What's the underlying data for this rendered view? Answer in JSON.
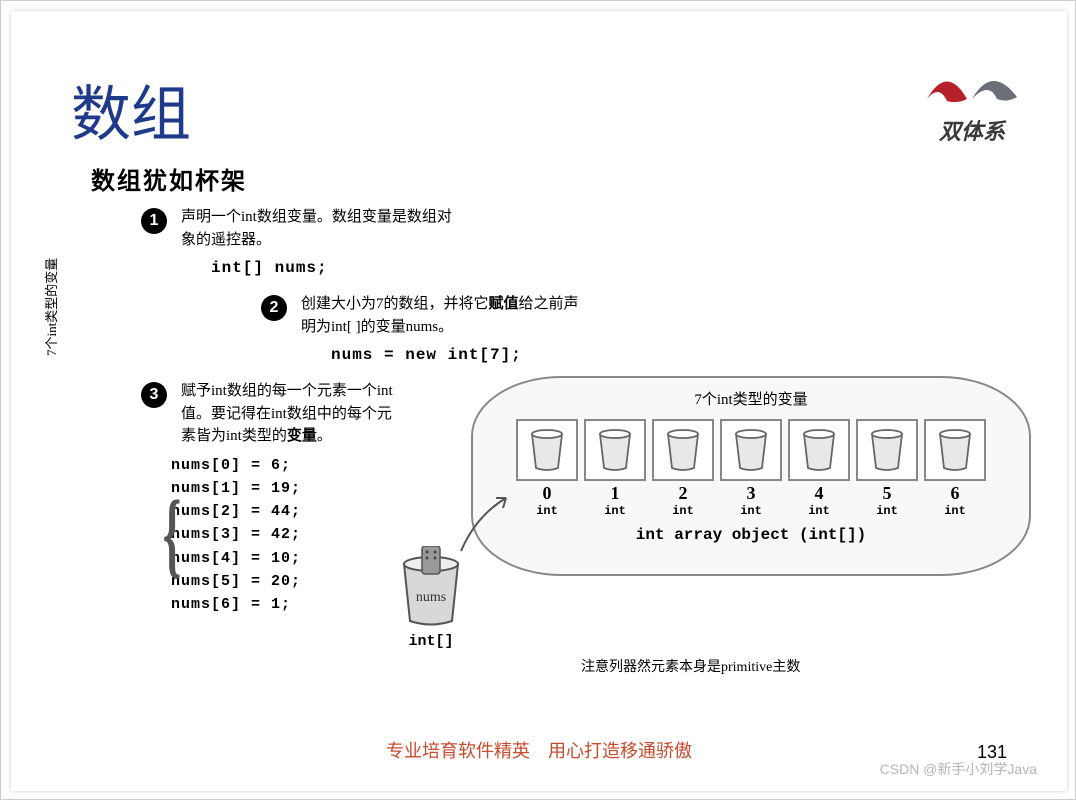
{
  "title": "数组",
  "logo_text": "双体系",
  "subtitle": "数组犹如杯架",
  "steps": [
    {
      "num": "1",
      "text_a": "声明一个int数组变量。数组变量是数组对",
      "text_b": "象的遥控器。",
      "code": "int[] nums;"
    },
    {
      "num": "2",
      "text_a": "创建大小为7的数组，并将它",
      "bold": "赋值",
      "text_b": "给之前声",
      "text_c": "明为int[ ]的变量nums。",
      "code": "nums = new int[7];"
    },
    {
      "num": "3",
      "text_a": "赋予int数组的每一个元素一个int",
      "text_b": "值。要记得在int数组中的每个元",
      "text_c": "素皆为int类型的",
      "bold": "变量",
      "text_d": "。"
    }
  ],
  "assignments": [
    "nums[0] = 6;",
    "nums[1] = 19;",
    "nums[2] = 44;",
    "nums[3] = 42;",
    "nums[4] = 10;",
    "nums[5] = 20;",
    "nums[6] = 1;"
  ],
  "side_label": "7个int类型的变量",
  "diagram": {
    "caption": "7个int类型的变量",
    "indices": [
      "0",
      "1",
      "2",
      "3",
      "4",
      "5",
      "6"
    ],
    "type_label": "int",
    "array_obj": "int array object (int[])",
    "remote_var": "nums",
    "remote_type": "int[]"
  },
  "note": "注意列器然元素本身是primitive主数",
  "footer": "专业培育软件精英　用心打造移通骄傲",
  "page_num": "131",
  "watermark": "CSDN @新手小刘学Java",
  "colors": {
    "title": "#1f3a8a",
    "footer": "#c94a2e",
    "logo_red": "#b5202a",
    "logo_gray": "#6a6f78"
  }
}
